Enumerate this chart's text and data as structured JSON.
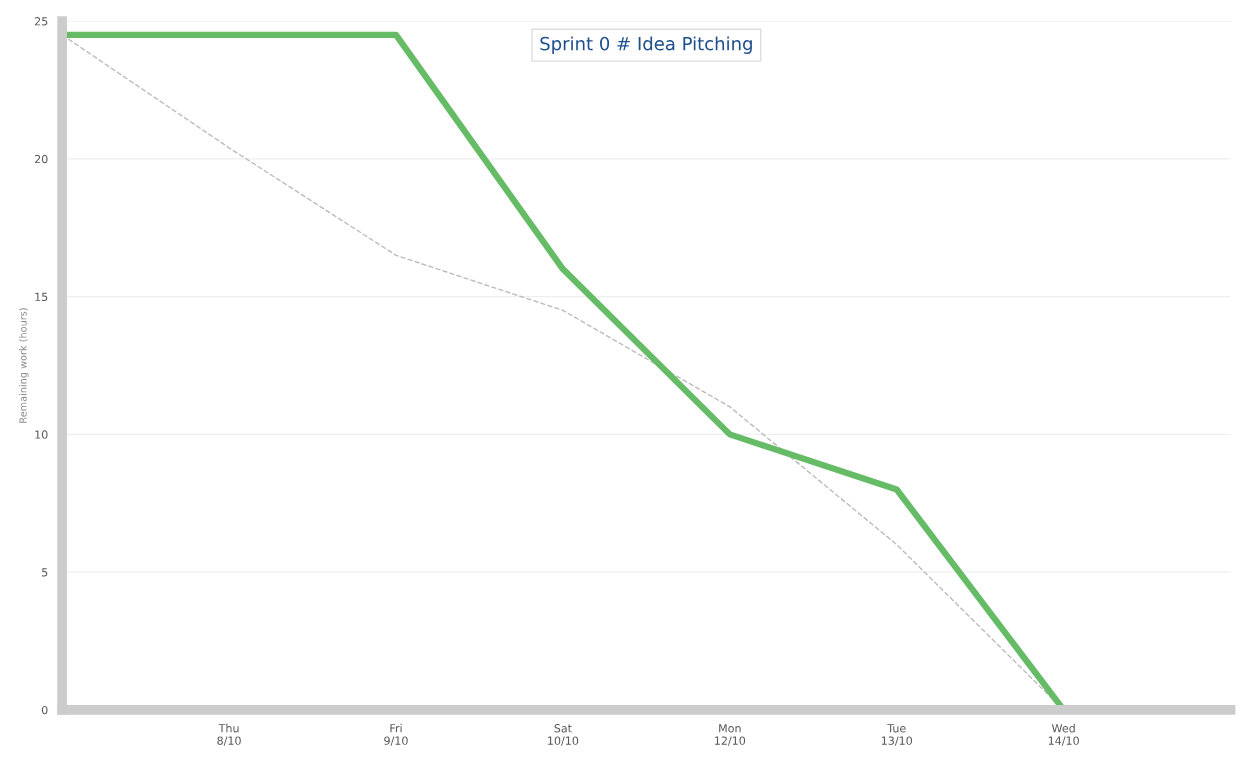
{
  "chart_data": {
    "type": "line",
    "title": "Sprint 0 # Idea Pitching",
    "ylabel": "Remaining work (hours)",
    "categories": [
      null,
      "Thu\n8/10",
      "Fri\n9/10",
      "Sat\n10/10",
      "Mon\n12/10",
      "Tue\n13/10",
      "Wed\n14/10",
      null
    ],
    "series": [
      {
        "color": "#bbbbbb",
        "line_style": "dashed",
        "values": [
          24.5,
          20.4,
          16.5,
          14.5,
          11,
          6,
          0,
          null
        ]
      },
      {
        "color": "#66bb66",
        "line_style": "solid",
        "values": [
          24.5,
          24.5,
          24.5,
          16,
          10,
          8,
          0,
          null
        ]
      }
    ],
    "ylim": [
      0,
      25
    ],
    "yticks": [
      0,
      5,
      10,
      15,
      20,
      25
    ],
    "grid": "y",
    "legend": false
  }
}
